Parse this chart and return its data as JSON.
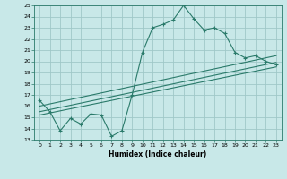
{
  "title": "",
  "xlabel": "Humidex (Indice chaleur)",
  "bg_color": "#c8e8e8",
  "grid_color": "#a0c8c8",
  "line_color": "#2a7a6a",
  "xlim": [
    -0.5,
    23.5
  ],
  "ylim": [
    13,
    25
  ],
  "xticks": [
    0,
    1,
    2,
    3,
    4,
    5,
    6,
    7,
    8,
    9,
    10,
    11,
    12,
    13,
    14,
    15,
    16,
    17,
    18,
    19,
    20,
    21,
    22,
    23
  ],
  "yticks": [
    13,
    14,
    15,
    16,
    17,
    18,
    19,
    20,
    21,
    22,
    23,
    24,
    25
  ],
  "series1_x": [
    0,
    1,
    2,
    3,
    4,
    5,
    6,
    7,
    8,
    9,
    10,
    11,
    12,
    13,
    14,
    15,
    16,
    17,
    18,
    19,
    20,
    21,
    22,
    23
  ],
  "series1_y": [
    16.5,
    15.5,
    13.8,
    14.9,
    14.4,
    15.3,
    15.2,
    13.3,
    13.8,
    17.0,
    20.8,
    23.0,
    23.3,
    23.7,
    25.0,
    23.8,
    22.8,
    23.0,
    22.5,
    20.8,
    20.3,
    20.5,
    20.0,
    19.7
  ],
  "series2_x": [
    0,
    23
  ],
  "series2_y": [
    16.0,
    20.5
  ],
  "series3_x": [
    0,
    23
  ],
  "series3_y": [
    15.5,
    19.9
  ],
  "series4_x": [
    0,
    23
  ],
  "series4_y": [
    15.2,
    19.5
  ]
}
